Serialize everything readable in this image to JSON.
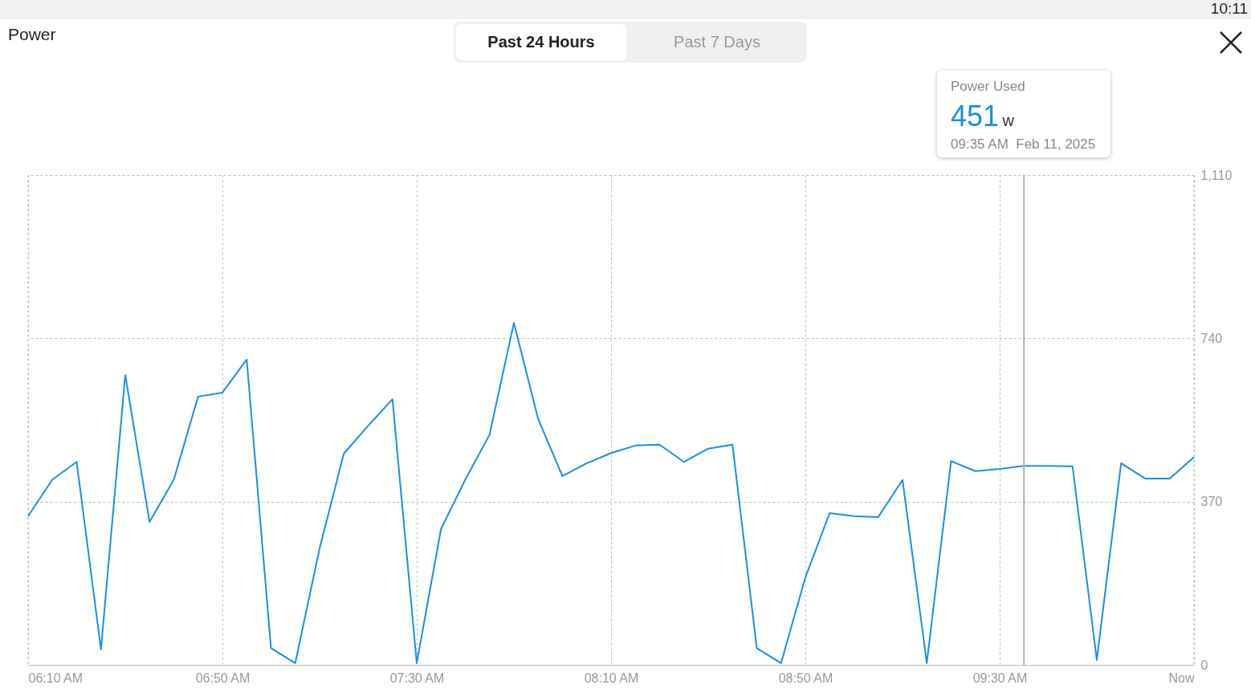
{
  "chart_data": {
    "type": "line",
    "title": "Power",
    "x": [
      6.1667,
      6.25,
      6.3333,
      6.4167,
      6.5,
      6.5833,
      6.6667,
      6.75,
      6.8333,
      6.9167,
      7.0,
      7.0833,
      7.1667,
      7.25,
      7.3333,
      7.4167,
      7.5,
      7.5833,
      7.6667,
      7.75,
      7.8333,
      7.9167,
      8.0,
      8.0833,
      8.1667,
      8.25,
      8.3333,
      8.4167,
      8.5,
      8.5833,
      8.6667,
      8.75,
      8.8333,
      8.9167,
      9.0,
      9.0833,
      9.1667,
      9.25,
      9.3333,
      9.4167,
      9.5,
      9.5833,
      9.6667,
      9.75,
      9.8333,
      9.9167,
      10.0,
      10.0833,
      10.1667
    ],
    "series": [
      {
        "color": "#1a8fe3",
        "values": [
          337,
          420,
          460,
          35,
          657,
          324,
          420,
          608,
          617,
          692,
          38,
          4,
          264,
          479,
          542,
          602,
          4,
          308,
          420,
          522,
          775,
          557,
          428,
          457,
          480,
          497,
          499,
          460,
          490,
          499,
          38,
          4,
          198,
          344,
          337,
          335,
          419,
          4,
          462,
          439,
          444,
          451,
          451,
          450,
          11,
          457,
          422,
          422,
          471
        ]
      }
    ],
    "xlim": [
      6.1667,
      10.1667
    ],
    "xticks": [
      {
        "value": 6.1667,
        "label": "06:10 AM"
      },
      {
        "value": 6.8333,
        "label": "06:50 AM"
      },
      {
        "value": 7.5,
        "label": "07:30 AM"
      },
      {
        "value": 8.1667,
        "label": "08:10 AM"
      },
      {
        "value": 8.8333,
        "label": "08:50 AM"
      },
      {
        "value": 9.5,
        "label": "09:30 AM"
      },
      {
        "value": 10.1667,
        "label": "Now"
      }
    ],
    "ylim": [
      0,
      1110
    ],
    "yticks": [
      0,
      370,
      740,
      {
        "value": 1110,
        "label": "1,110"
      }
    ],
    "grid": true,
    "marker": "none",
    "line_style": "solid",
    "ref_lines": [
      {
        "axis": "x",
        "value": 9.5833,
        "color": "#b0b0b0"
      }
    ],
    "annotations": [
      "Past 24 Hours",
      "Past 7 Days",
      "Power Used",
      "451",
      "w",
      "09:35 AM  Feb 11, 2025",
      "10:11"
    ]
  }
}
